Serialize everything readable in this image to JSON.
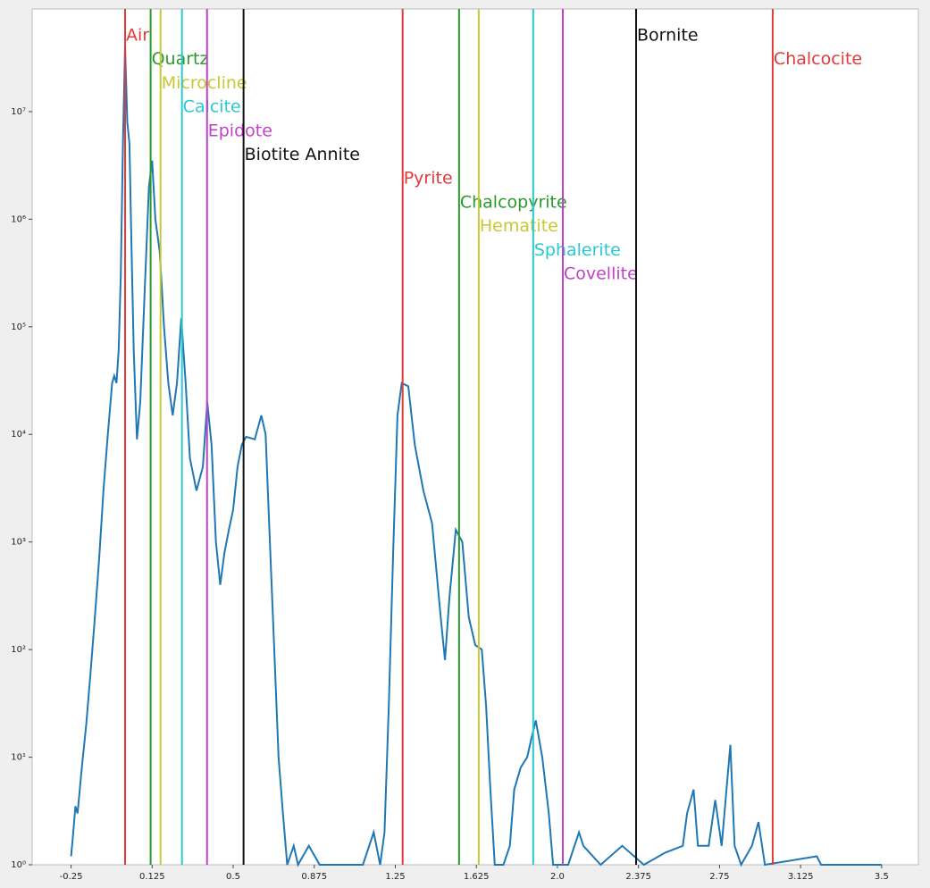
{
  "chart_data": {
    "type": "line",
    "log_y": true,
    "xlim": [
      -0.43,
      3.67
    ],
    "ylim": [
      1,
      90000000
    ],
    "xticks": [
      -0.25,
      0.125,
      0.5,
      0.875,
      1.25,
      1.625,
      {
        "value": 2,
        "label": "2.0"
      },
      2.375,
      2.75,
      3.125,
      3.5
    ],
    "yticks": [
      {
        "value": 1,
        "label": "10⁰"
      },
      {
        "value": 10,
        "label": "10¹"
      },
      {
        "value": 100,
        "label": "10²"
      },
      {
        "value": 1000,
        "label": "10³"
      },
      {
        "value": 10000,
        "label": "10⁴"
      },
      {
        "value": 100000,
        "label": "10⁵"
      },
      {
        "value": 1000000,
        "label": "10⁶"
      },
      {
        "value": 10000000,
        "label": "10⁷"
      }
    ],
    "series": [
      {
        "color": "#1f77b4",
        "x": [
          -0.25,
          -0.24,
          -0.23,
          -0.22,
          -0.2,
          -0.18,
          -0.16,
          -0.14,
          -0.12,
          -0.1,
          -0.08,
          -0.06,
          -0.05,
          -0.04,
          -0.03,
          -0.02,
          -0.01,
          0.0,
          0.01,
          0.02,
          0.03,
          0.04,
          0.055,
          0.07,
          0.09,
          0.11,
          0.125,
          0.14,
          0.16,
          0.18,
          0.2,
          0.22,
          0.24,
          0.26,
          0.28,
          0.3,
          0.33,
          0.36,
          0.38,
          0.4,
          0.42,
          0.44,
          0.46,
          0.48,
          0.5,
          0.52,
          0.54,
          0.56,
          0.6,
          0.63,
          0.65,
          0.67,
          0.69,
          0.71,
          0.73,
          0.75,
          0.78,
          0.8,
          0.85,
          0.9,
          1.1,
          1.15,
          1.18,
          1.2,
          1.22,
          1.24,
          1.26,
          1.28,
          1.31,
          1.34,
          1.38,
          1.42,
          1.46,
          1.48,
          1.5,
          1.53,
          1.56,
          1.59,
          1.62,
          1.65,
          1.67,
          1.69,
          1.71,
          1.75,
          1.78,
          1.8,
          1.83,
          1.86,
          1.88,
          1.9,
          1.93,
          1.96,
          1.98,
          2.05,
          2.1,
          2.12,
          2.2,
          2.3,
          2.4,
          2.5,
          2.58,
          2.6,
          2.63,
          2.65,
          2.7,
          2.73,
          2.76,
          2.8,
          2.82,
          2.85,
          2.9,
          2.93,
          2.96,
          3.2,
          3.22,
          3.5
        ],
        "values": [
          1.2,
          2,
          3.5,
          3,
          8,
          20,
          60,
          200,
          700,
          3000,
          10000,
          30000,
          35000,
          30000,
          60000,
          300000,
          5000000,
          40000000,
          8000000,
          5000000,
          500000,
          60000,
          9000,
          20000,
          200000,
          2000000,
          3500000,
          1000000,
          500000,
          100000,
          30000,
          15000,
          30000,
          120000,
          30000,
          6000,
          3000,
          5000,
          20000,
          8000,
          1000,
          400,
          800,
          1300,
          2000,
          5000,
          8000,
          9500,
          9000,
          15000,
          10000,
          1000,
          100,
          10,
          3,
          1,
          1.5,
          1,
          1.5,
          1,
          1,
          2,
          1,
          2,
          30,
          800,
          15000,
          30000,
          28000,
          8000,
          3000,
          1500,
          200,
          80,
          300,
          1300,
          1000,
          200,
          110,
          100,
          30,
          5,
          1,
          1,
          1.5,
          5,
          8,
          10,
          15,
          22,
          10,
          3,
          1,
          1,
          2,
          1.5,
          1,
          1.5,
          1,
          1.3,
          1.5,
          3,
          5,
          1.5,
          1.5,
          4,
          1.5,
          13,
          1.5,
          1,
          1.5,
          2.5,
          1,
          1.2,
          1,
          1
        ]
      }
    ],
    "vlines": [
      {
        "name": "Air",
        "x": 0.0,
        "color": "#e03a3a"
      },
      {
        "name": "Quartz",
        "x": 0.118,
        "color": "#2a9a2a"
      },
      {
        "name": "Microcline",
        "x": 0.164,
        "color": "#c8c832"
      },
      {
        "name": "Calcite",
        "x": 0.263,
        "color": "#2ac8d0"
      },
      {
        "name": "Epidote",
        "x": 0.379,
        "color": "#c040c8"
      },
      {
        "name": "Biotite Annite",
        "x": 0.548,
        "color": "#111111"
      },
      {
        "name": "Pyrite",
        "x": 1.284,
        "color": "#e03a3a"
      },
      {
        "name": "Chalcopyrite",
        "x": 1.545,
        "color": "#2a9a2a"
      },
      {
        "name": "Hematite",
        "x": 1.636,
        "color": "#c8c832"
      },
      {
        "name": "Sphalerite",
        "x": 1.888,
        "color": "#2ac8d0"
      },
      {
        "name": "Covellite",
        "x": 2.025,
        "color": "#c040c8"
      },
      {
        "name": "Bornite",
        "x": 2.364,
        "color": "#111111"
      },
      {
        "name": "Chalcocite",
        "x": 2.996,
        "color": "#e03a3a"
      }
    ]
  }
}
